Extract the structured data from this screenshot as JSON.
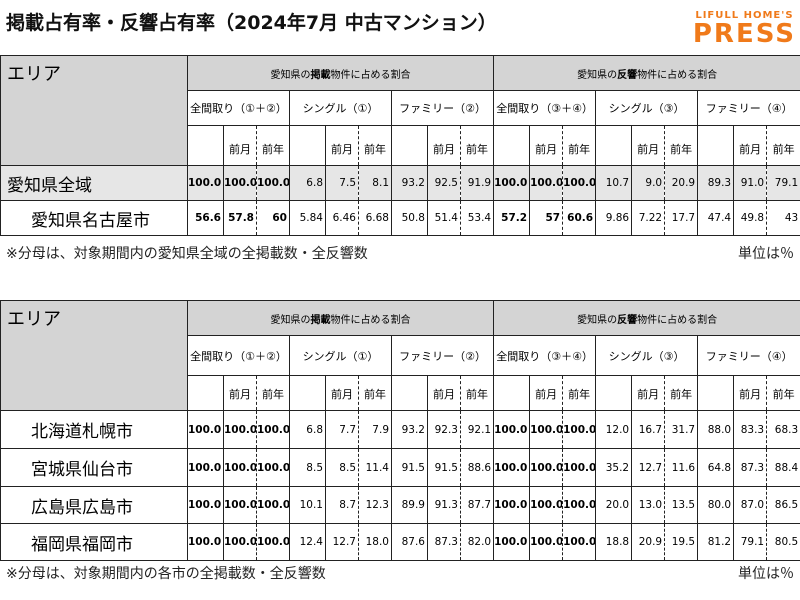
{
  "header": {
    "title": "掲載占有率・反響占有率（2024年7月 中古マンション）",
    "logo_top": "LIFULL HOME'S",
    "logo_bottom": "PRESS"
  },
  "tables": [
    {
      "area_label": "エリア",
      "groups": [
        [
          "愛知県の",
          "掲載",
          "物件に占める割合"
        ],
        [
          "愛知県の",
          "反響",
          "物件に占める割合"
        ]
      ],
      "subgroups": [
        "全間取り（①＋②）",
        "シングル（①）",
        "ファミリー（②）",
        "全間取り（③＋④）",
        "シングル（③）",
        "ファミリー（④）"
      ],
      "period_labels": [
        "前月",
        "前年"
      ],
      "rows": [
        {
          "area": "愛知県全域",
          "values": [
            "100.0",
            "100.0",
            "100.0",
            "6.8",
            "7.5",
            "8.1",
            "93.2",
            "92.5",
            "91.9",
            "100.0",
            "100.0",
            "100.0",
            "10.7",
            "9.0",
            "20.9",
            "89.3",
            "91.0",
            "79.1"
          ]
        },
        {
          "area": "愛知県名古屋市",
          "values": [
            "56.6",
            "57.8",
            "60",
            "5.84",
            "6.46",
            "6.68",
            "50.8",
            "51.4",
            "53.4",
            "57.2",
            "57",
            "60.6",
            "9.86",
            "7.22",
            "17.7",
            "47.4",
            "49.8",
            "43"
          ]
        }
      ],
      "note": "※分母は、対象期間内の愛知県全域の全掲載数・全反響数",
      "unit": "単位は％"
    },
    {
      "area_label": "エリア",
      "groups": [
        [
          "愛知県の",
          "掲載",
          "物件に占める割合"
        ],
        [
          "愛知県の",
          "反響",
          "物件に占める割合"
        ]
      ],
      "subgroups": [
        "全間取り（①＋②）",
        "シングル（①）",
        "ファミリー（②）",
        "全間取り（③＋④）",
        "シングル（③）",
        "ファミリー（④）"
      ],
      "period_labels": [
        "前月",
        "前年"
      ],
      "rows": [
        {
          "area": "北海道札幌市",
          "values": [
            "100.0",
            "100.0",
            "100.0",
            "6.8",
            "7.7",
            "7.9",
            "93.2",
            "92.3",
            "92.1",
            "100.0",
            "100.0",
            "100.0",
            "12.0",
            "16.7",
            "31.7",
            "88.0",
            "83.3",
            "68.3"
          ]
        },
        {
          "area": "宮城県仙台市",
          "values": [
            "100.0",
            "100.0",
            "100.0",
            "8.5",
            "8.5",
            "11.4",
            "91.5",
            "91.5",
            "88.6",
            "100.0",
            "100.0",
            "100.0",
            "35.2",
            "12.7",
            "11.6",
            "64.8",
            "87.3",
            "88.4"
          ]
        },
        {
          "area": "広島県広島市",
          "values": [
            "100.0",
            "100.0",
            "100.0",
            "10.1",
            "8.7",
            "12.3",
            "89.9",
            "91.3",
            "87.7",
            "100.0",
            "100.0",
            "100.0",
            "20.0",
            "13.0",
            "13.5",
            "80.0",
            "87.0",
            "86.5"
          ]
        },
        {
          "area": "福岡県福岡市",
          "values": [
            "100.0",
            "100.0",
            "100.0",
            "12.4",
            "12.7",
            "18.0",
            "87.6",
            "87.3",
            "82.0",
            "100.0",
            "100.0",
            "100.0",
            "18.8",
            "20.9",
            "19.5",
            "81.2",
            "79.1",
            "80.5"
          ]
        }
      ],
      "note": "※分母は、対象期間内の各市の全掲載数・全反響数",
      "unit": "単位は％"
    }
  ]
}
